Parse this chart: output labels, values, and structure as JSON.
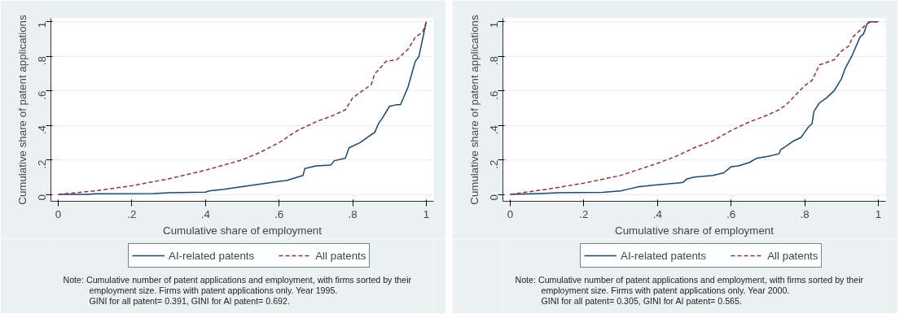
{
  "chart_data": [
    {
      "type": "line",
      "xlabel": "Cumulative share of employment",
      "ylabel": "Cumulative share of patent applications",
      "xlim": [
        -0.02,
        1.02
      ],
      "ylim": [
        -0.04,
        1.02
      ],
      "xticks": [
        0,
        {
          "value": 0.2,
          "label": ".2"
        },
        {
          "value": 0.4,
          "label": ".4"
        },
        {
          "value": 0.6,
          "label": ".6"
        },
        {
          "value": 0.8,
          "label": ".8"
        },
        1
      ],
      "yticks": [
        0,
        {
          "value": 0.2,
          "label": ".2"
        },
        {
          "value": 0.4,
          "label": ".4"
        },
        {
          "value": 0.6,
          "label": ".6"
        },
        {
          "value": 0.8,
          "label": ".8"
        },
        1
      ],
      "grid": "y",
      "legend": "bottom",
      "series": [
        {
          "name": "AI-related patents",
          "color": "#1a476f",
          "line_style": "solid",
          "x": [
            0,
            0.08,
            0.1,
            0.26,
            0.3,
            0.4,
            0.41,
            0.45,
            0.5,
            0.55,
            0.6,
            0.62,
            0.65,
            0.665,
            0.67,
            0.7,
            0.74,
            0.75,
            0.78,
            0.79,
            0.82,
            0.84,
            0.86,
            0.87,
            0.88,
            0.9,
            0.92,
            0.93,
            0.94,
            0.95,
            0.97,
            0.98,
            1
          ],
          "values": [
            0,
            0,
            0.004,
            0.005,
            0.01,
            0.013,
            0.02,
            0.03,
            0.045,
            0.06,
            0.075,
            0.08,
            0.1,
            0.11,
            0.15,
            0.165,
            0.17,
            0.195,
            0.21,
            0.27,
            0.3,
            0.33,
            0.36,
            0.41,
            0.44,
            0.51,
            0.52,
            0.52,
            0.57,
            0.62,
            0.77,
            0.8,
            1
          ]
        },
        {
          "name": "All patents",
          "color": "#90353b",
          "line_style": "dashed",
          "x": [
            0,
            0.05,
            0.1,
            0.2,
            0.3,
            0.4,
            0.5,
            0.55,
            0.6,
            0.65,
            0.7,
            0.75,
            0.78,
            0.8,
            0.85,
            0.86,
            0.87,
            0.89,
            0.92,
            0.95,
            0.97,
            0.99,
            1
          ],
          "values": [
            0,
            0.01,
            0.02,
            0.05,
            0.09,
            0.14,
            0.2,
            0.245,
            0.3,
            0.37,
            0.42,
            0.46,
            0.49,
            0.56,
            0.635,
            0.7,
            0.72,
            0.77,
            0.78,
            0.84,
            0.91,
            0.94,
            1
          ]
        }
      ],
      "annotations": [
        "Note: Cumulative number of patent applications and employment, with firms sorted by their",
        "employment size. Firms with patent applications only. Year 1995.",
        "GINI for all patent=    0.391, GINI for AI patent=    0.692."
      ]
    },
    {
      "type": "line",
      "xlabel": "Cumulative share of employment",
      "ylabel": "Cumulative share of patent applications",
      "xlim": [
        -0.02,
        1.02
      ],
      "ylim": [
        -0.04,
        1.02
      ],
      "xticks": [
        0,
        {
          "value": 0.2,
          "label": ".2"
        },
        {
          "value": 0.4,
          "label": ".4"
        },
        {
          "value": 0.6,
          "label": ".6"
        },
        {
          "value": 0.8,
          "label": ".8"
        },
        1
      ],
      "yticks": [
        0,
        {
          "value": 0.2,
          "label": ".2"
        },
        {
          "value": 0.4,
          "label": ".4"
        },
        {
          "value": 0.6,
          "label": ".6"
        },
        {
          "value": 0.8,
          "label": ".8"
        },
        1
      ],
      "grid": "y",
      "legend": "bottom",
      "series": [
        {
          "name": "AI-related patents",
          "color": "#1a476f",
          "line_style": "solid",
          "x": [
            0,
            0.08,
            0.13,
            0.25,
            0.3,
            0.32,
            0.35,
            0.4,
            0.45,
            0.47,
            0.48,
            0.5,
            0.55,
            0.58,
            0.6,
            0.62,
            0.65,
            0.67,
            0.7,
            0.73,
            0.735,
            0.75,
            0.77,
            0.79,
            0.8,
            0.81,
            0.82,
            0.825,
            0.84,
            0.86,
            0.88,
            0.9,
            0.91,
            0.93,
            0.94,
            0.95,
            0.96,
            0.97,
            0.98,
            1
          ],
          "values": [
            0,
            0.005,
            0.01,
            0.012,
            0.02,
            0.03,
            0.045,
            0.055,
            0.065,
            0.07,
            0.09,
            0.1,
            0.11,
            0.125,
            0.16,
            0.165,
            0.185,
            0.21,
            0.22,
            0.235,
            0.26,
            0.28,
            0.31,
            0.33,
            0.36,
            0.39,
            0.41,
            0.48,
            0.53,
            0.56,
            0.6,
            0.67,
            0.73,
            0.81,
            0.86,
            0.91,
            0.93,
            0.99,
            1,
            1
          ]
        },
        {
          "name": "All patents",
          "color": "#90353b",
          "line_style": "dashed",
          "x": [
            0,
            0.1,
            0.2,
            0.3,
            0.4,
            0.45,
            0.5,
            0.55,
            0.6,
            0.65,
            0.7,
            0.73,
            0.75,
            0.8,
            0.82,
            0.84,
            0.88,
            0.9,
            0.92,
            0.93,
            0.96,
            0.975,
            1
          ],
          "values": [
            0,
            0.03,
            0.065,
            0.11,
            0.18,
            0.22,
            0.27,
            0.31,
            0.37,
            0.42,
            0.46,
            0.49,
            0.52,
            0.63,
            0.66,
            0.75,
            0.78,
            0.83,
            0.86,
            0.91,
            0.97,
            1,
            1
          ]
        }
      ],
      "annotations": [
        "Note: Cumulative number of patent applications and employment, with firms sorted by their",
        "employment size. Firms with patent applications only. Year 2000.",
        "GINI for all patent=    0.305, GINI for AI patent=    0.565."
      ]
    }
  ]
}
